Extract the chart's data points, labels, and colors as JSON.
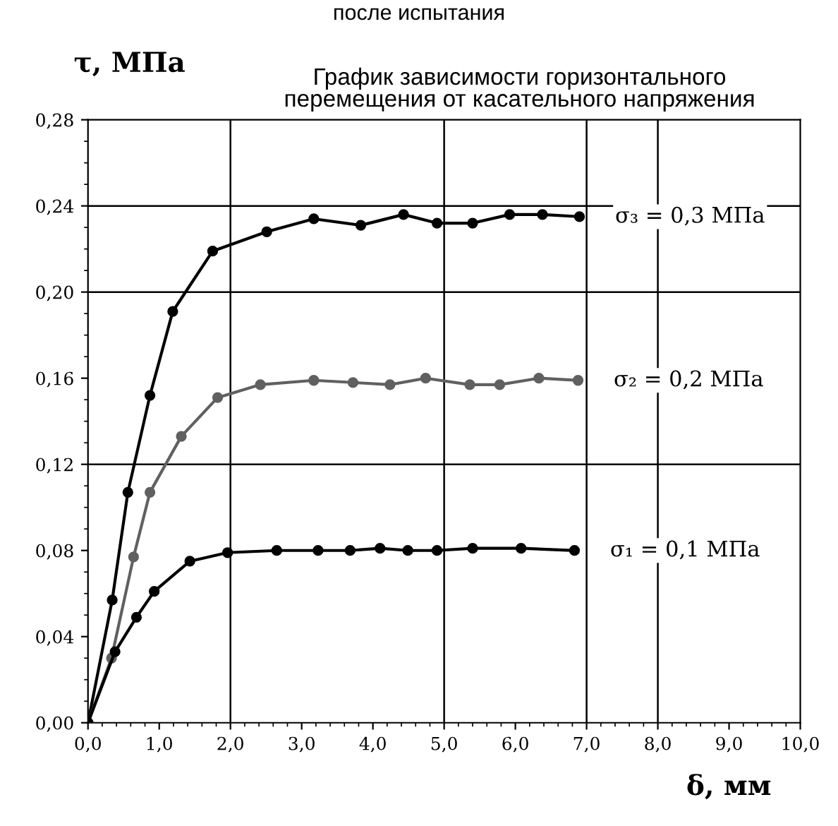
{
  "chart_data": {
    "type": "line",
    "title": "График зависимости горизонтального\nперемещения от касательного напряжения",
    "annotations": [
      "после испытания"
    ],
    "xlabel": "δ, мм",
    "ylabel": "τ, МПа",
    "xlim": [
      0,
      10
    ],
    "ylim": [
      0,
      0.28
    ],
    "xticks": [
      {
        "value": 0,
        "label": "0,0"
      },
      {
        "value": 1,
        "label": "1,0"
      },
      {
        "value": 2,
        "label": "2,0"
      },
      {
        "value": 3,
        "label": "3,0"
      },
      {
        "value": 4,
        "label": "4,0"
      },
      {
        "value": 5,
        "label": "5,0"
      },
      {
        "value": 6,
        "label": "6,0"
      },
      {
        "value": 7,
        "label": "7,0"
      },
      {
        "value": 8,
        "label": "8,0"
      },
      {
        "value": 9,
        "label": "9,0"
      },
      {
        "value": 10,
        "label": "10,0"
      }
    ],
    "yticks": [
      {
        "value": 0,
        "label": "0,00"
      },
      {
        "value": 0.04,
        "label": "0,04"
      },
      {
        "value": 0.08,
        "label": "0,08"
      },
      {
        "value": 0.12,
        "label": "0,12"
      },
      {
        "value": 0.16,
        "label": "0,16"
      },
      {
        "value": 0.2,
        "label": "0,20"
      },
      {
        "value": 0.24,
        "label": "0,24"
      },
      {
        "value": 0.28,
        "label": "0,28"
      }
    ],
    "grid": false,
    "marker": "circle",
    "line_style": "solid",
    "ref_lines": [
      {
        "axis": "x",
        "value": 2,
        "color": "#000000"
      },
      {
        "axis": "x",
        "value": 5,
        "color": "#000000"
      },
      {
        "axis": "x",
        "value": 7,
        "color": "#000000"
      },
      {
        "axis": "x",
        "value": 8,
        "color": "#000000"
      },
      {
        "axis": "y",
        "value": 0.12,
        "color": "#000000"
      },
      {
        "axis": "y",
        "value": 0.2,
        "color": "#000000"
      },
      {
        "axis": "y",
        "value": 0.24,
        "color": "#000000"
      }
    ],
    "series": [
      {
        "name": "σ₃ = 0,3 МПа",
        "color": "#000000",
        "x": [
          0,
          0.34,
          0.56,
          0.87,
          1.19,
          1.75,
          2.51,
          3.17,
          3.83,
          4.43,
          4.9,
          5.4,
          5.92,
          6.38,
          6.9
        ],
        "values": [
          0,
          0.057,
          0.107,
          0.152,
          0.191,
          0.219,
          0.228,
          0.234,
          0.231,
          0.236,
          0.232,
          0.232,
          0.236,
          0.236,
          0.235
        ]
      },
      {
        "name": "σ₂ = 0,2 МПа",
        "color": "#606060",
        "x": [
          0,
          0.33,
          0.64,
          0.87,
          1.31,
          1.82,
          2.42,
          3.17,
          3.72,
          4.24,
          4.74,
          5.36,
          5.78,
          6.33,
          6.88
        ],
        "values": [
          0,
          0.03,
          0.077,
          0.107,
          0.133,
          0.151,
          0.157,
          0.159,
          0.158,
          0.157,
          0.16,
          0.157,
          0.157,
          0.16,
          0.159
        ]
      },
      {
        "name": "σ₁ = 0,1 МПа",
        "color": "#000000",
        "x": [
          0,
          0.38,
          0.68,
          0.93,
          1.43,
          1.96,
          2.65,
          3.23,
          3.68,
          4.1,
          4.49,
          4.9,
          5.4,
          6.08,
          6.83
        ],
        "values": [
          0,
          0.033,
          0.049,
          0.061,
          0.075,
          0.079,
          0.08,
          0.08,
          0.08,
          0.081,
          0.08,
          0.08,
          0.081,
          0.081,
          0.08
        ]
      }
    ]
  }
}
